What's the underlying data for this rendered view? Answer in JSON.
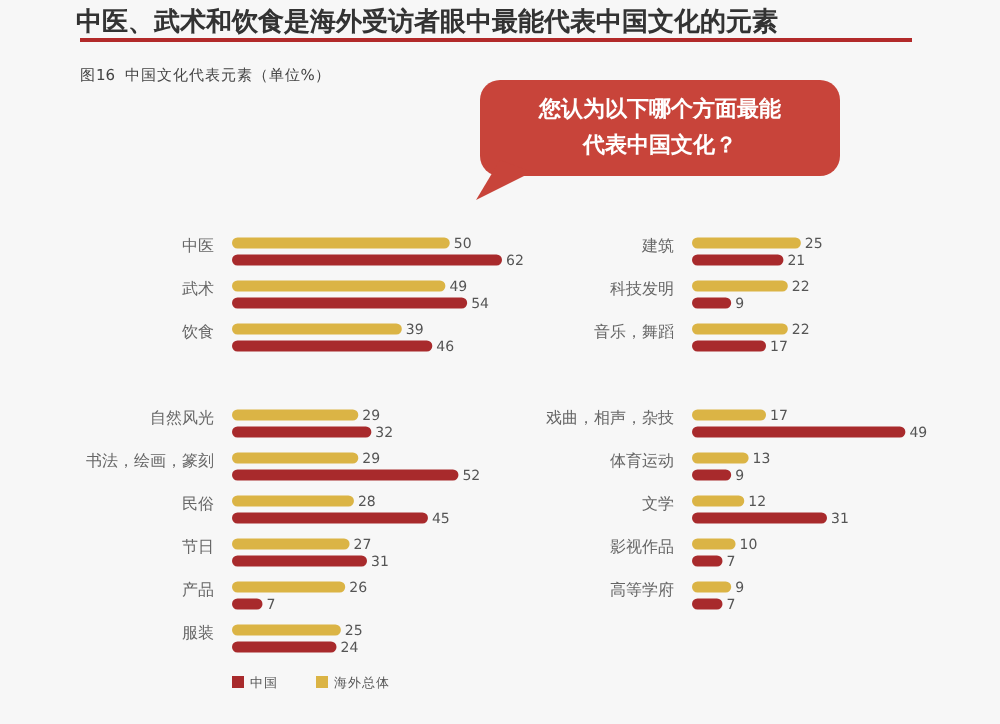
{
  "chart_data": [
    {
      "type": "bar",
      "orientation": "horizontal",
      "title": "中医、武术和饮食是海外受访者眼中最能代表中国文化的元素",
      "subtitle": "图16  中国文化代表元素（单位%）",
      "categories": [
        "中医",
        "武术",
        "饮食",
        null,
        "自然风光",
        "书法，绘画，篆刻",
        "民俗",
        "节日",
        "产品",
        "服装"
      ],
      "series": [
        {
          "name": "海外总体",
          "color": "#dbb445",
          "values": [
            50,
            49,
            39,
            null,
            29,
            29,
            28,
            27,
            26,
            25
          ]
        },
        {
          "name": "中国",
          "color": "#a82a2c",
          "values": [
            62,
            54,
            46,
            null,
            32,
            52,
            45,
            31,
            7,
            24
          ]
        }
      ],
      "data_labels": true,
      "legend": "bottom left"
    },
    {
      "type": "bar",
      "orientation": "horizontal",
      "annotations": [
        "您认为以下哪个方面最能代表中国文化？"
      ],
      "categories": [
        "建筑",
        "科技发明",
        "音乐，舞蹈",
        null,
        "戏曲，相声，杂技",
        "体育运动",
        "文学",
        "影视作品",
        "高等学府"
      ],
      "series": [
        {
          "color": "#dbb445",
          "values": [
            25,
            22,
            22,
            null,
            17,
            13,
            12,
            10,
            9
          ]
        },
        {
          "color": "#a82a2c",
          "values": [
            21,
            9,
            17,
            null,
            49,
            9,
            31,
            7,
            7
          ]
        }
      ],
      "data_labels": true
    }
  ]
}
